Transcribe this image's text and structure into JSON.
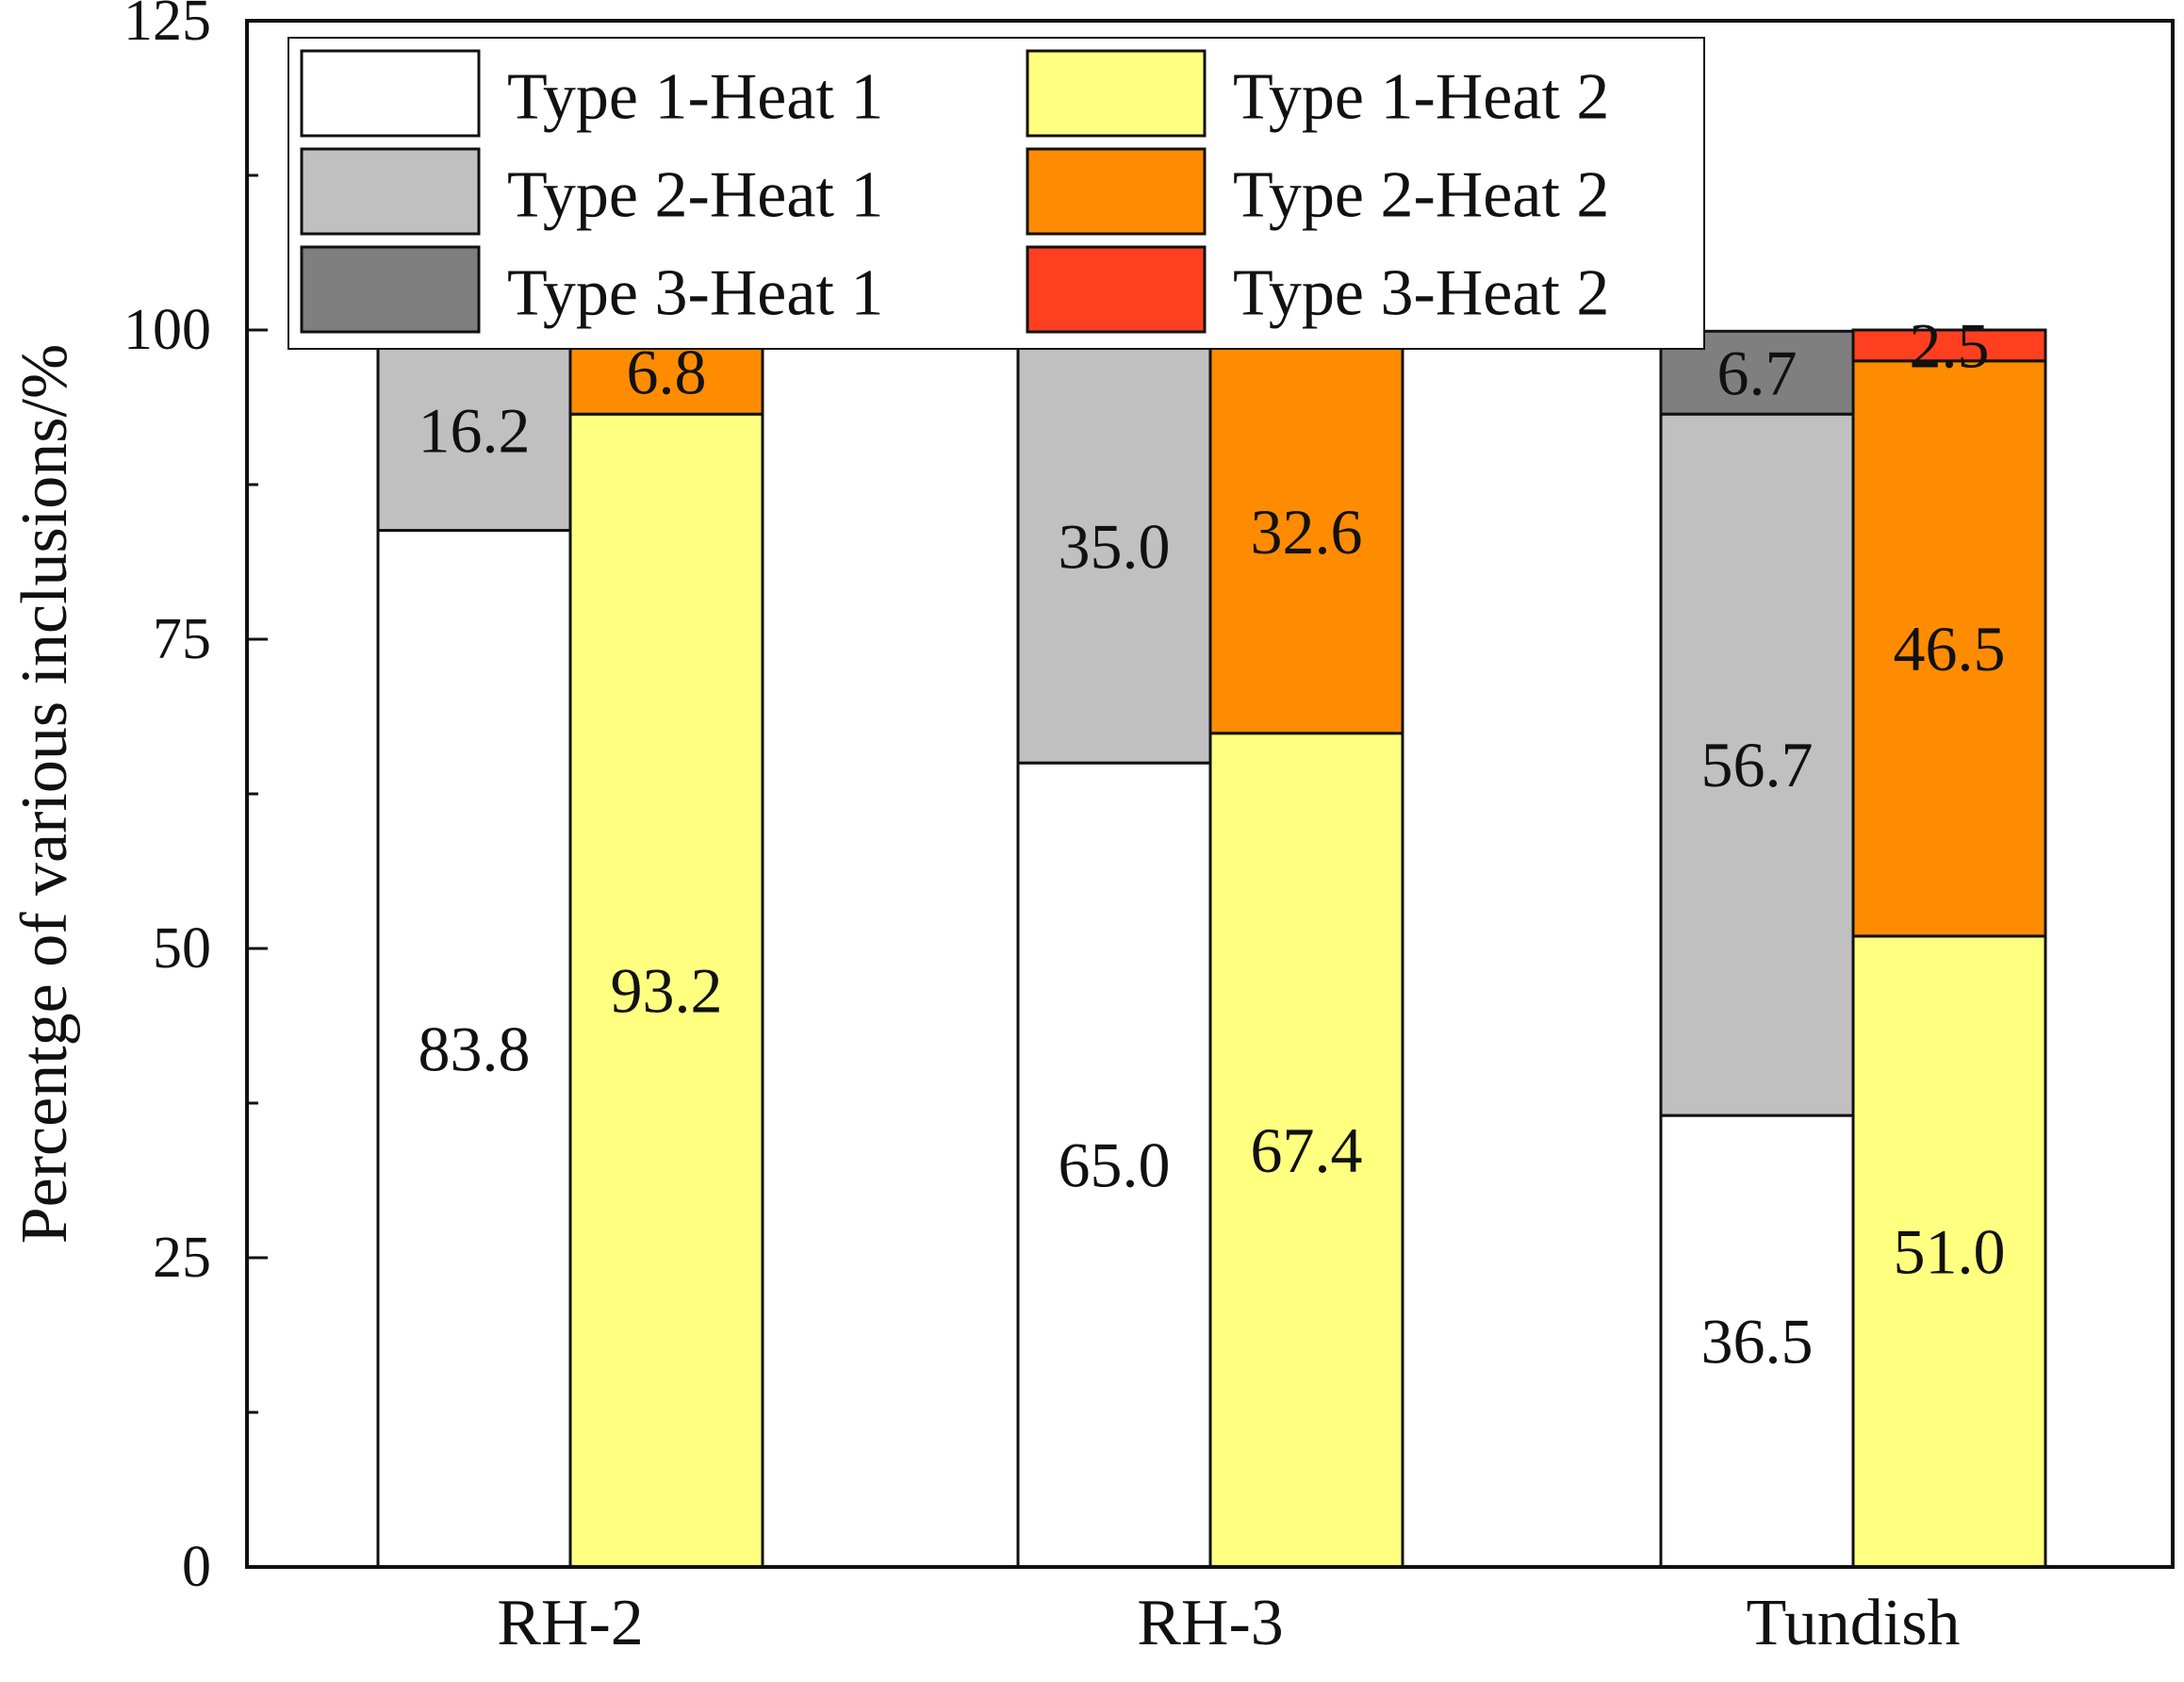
{
  "chart_data": {
    "type": "bar",
    "stacked": true,
    "title": "",
    "xlabel": "",
    "ylabel": "Percentge of various inclusions/%",
    "ylim": [
      0,
      125
    ],
    "yticks": [
      0,
      25,
      50,
      75,
      100,
      125
    ],
    "categories": [
      "RH-2",
      "RH-3",
      "Tundish"
    ],
    "legend_position": "top-left",
    "groups": [
      {
        "name": "Heat 1",
        "series": [
          {
            "name": "Type 1-Heat 1",
            "color": "#ffffff",
            "values": [
              83.8,
              65.0,
              36.5
            ],
            "labels": [
              "83.8",
              "65.0",
              "36.5"
            ]
          },
          {
            "name": "Type 2-Heat 1",
            "color": "#c0c0c0",
            "values": [
              16.2,
              35.0,
              56.7
            ],
            "labels": [
              "16.2",
              "35.0",
              "56.7"
            ]
          },
          {
            "name": "Type 3-Heat 1",
            "color": "#7f7f7f",
            "values": [
              0,
              0,
              6.7
            ],
            "labels": [
              "",
              "",
              "6.7"
            ]
          }
        ]
      },
      {
        "name": "Heat 2",
        "series": [
          {
            "name": "Type 1-Heat 2",
            "color": "#ffff80",
            "values": [
              93.2,
              67.4,
              51.0
            ],
            "labels": [
              "93.2",
              "67.4",
              "51.0"
            ]
          },
          {
            "name": "Type 2-Heat 2",
            "color": "#ff8c00",
            "values": [
              6.8,
              32.6,
              46.5
            ],
            "labels": [
              "6.8",
              "32.6",
              "46.5"
            ]
          },
          {
            "name": "Type 3-Heat 2",
            "color": "#ff4020",
            "values": [
              0,
              0,
              2.5
            ],
            "labels": [
              "",
              "",
              "2.5"
            ]
          }
        ]
      }
    ],
    "legend_entries": [
      "Type 1-Heat 1",
      "Type 1-Heat 2",
      "Type 2-Heat 1",
      "Type 2-Heat 2",
      "Type 3-Heat 1",
      "Type 3-Heat 2"
    ]
  }
}
